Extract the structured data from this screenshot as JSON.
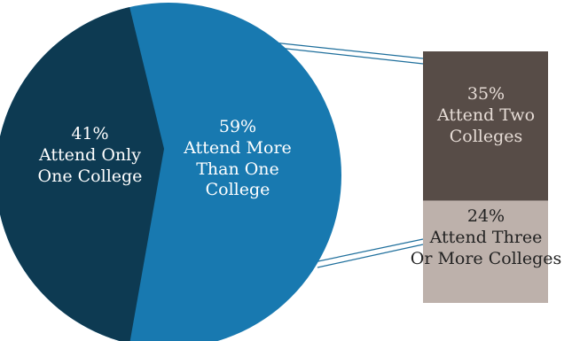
{
  "chart_data": {
    "type": "bar-of-pie",
    "pie": {
      "slices": [
        {
          "percent": 41,
          "label_line1": "Attend Only",
          "label_line2": "One College",
          "color": "#0d3a52"
        },
        {
          "percent": 59,
          "label_line1": "Attend More",
          "label_line2": "Than One",
          "label_line3": "College",
          "color": "#1879b0"
        }
      ]
    },
    "breakdown_bar": {
      "segments": [
        {
          "percent": 35,
          "label_line1": "Attend Two",
          "label_line2": "Colleges",
          "color": "#574c47"
        },
        {
          "percent": 24,
          "label_line1": "Attend Three",
          "label_line2": "Or More Colleges",
          "color": "#bdb1ab"
        }
      ]
    },
    "connector_color": "#1f6f9c"
  }
}
